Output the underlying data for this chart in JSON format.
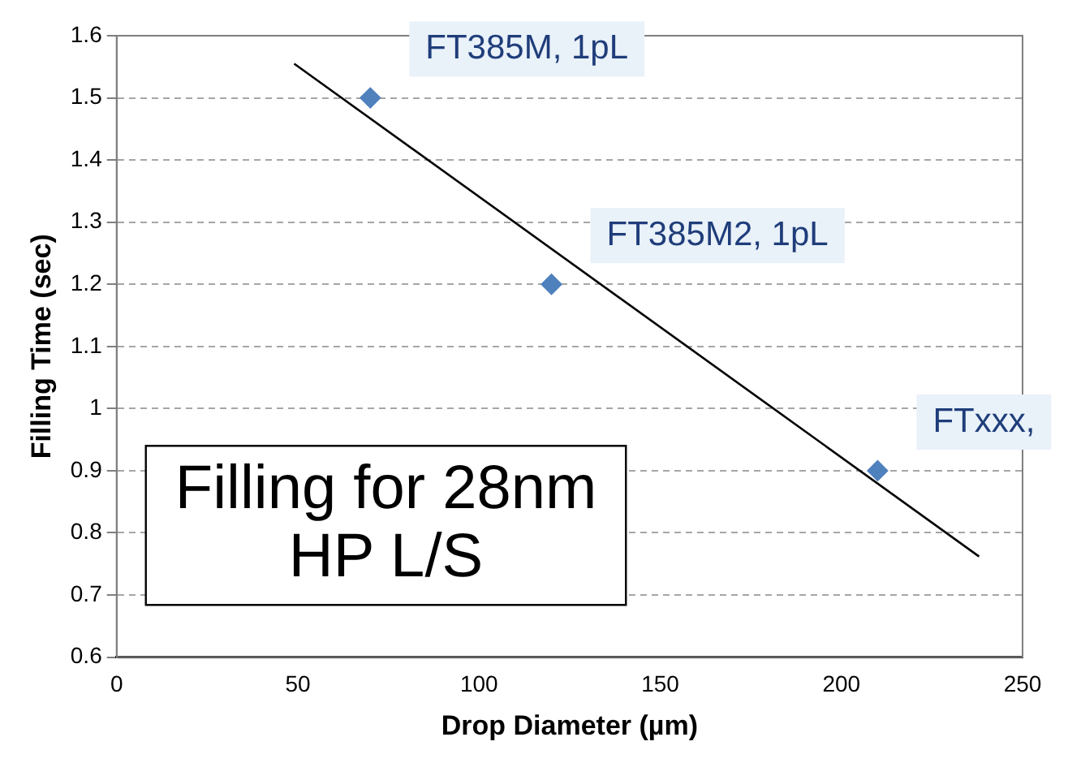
{
  "chart_data": {
    "type": "scatter",
    "xlabel": "Drop Diameter (µm)",
    "ylabel": "Filling Time (sec)",
    "xlim": [
      0,
      250
    ],
    "xticks": [
      0,
      50,
      100,
      150,
      200,
      250
    ],
    "ylim": [
      0.6,
      1.6
    ],
    "yticks": [
      0.6,
      0.7,
      0.8,
      0.9,
      1,
      1.1,
      1.2,
      1.3,
      1.4,
      1.5,
      1.6
    ],
    "grid": "y",
    "series": [
      {
        "color": "#4f81bd",
        "marker": "diamond",
        "x": [
          70,
          120,
          210
        ],
        "values": [
          1.5,
          1.2,
          0.9
        ]
      },
      {
        "type": "line",
        "color": "#000000",
        "x": [
          49,
          238
        ],
        "values": [
          1.555,
          0.762
        ]
      }
    ],
    "annotations": [
      {
        "text": "FT385M, 1pL",
        "x": 70,
        "y": 1.5
      },
      {
        "text": "FT385M2, 1pL",
        "x": 120,
        "y": 1.2
      },
      {
        "text": "FTxxx,",
        "x": 210,
        "y": 0.9
      },
      "Filling for 28nm\nHP L/S"
    ]
  }
}
